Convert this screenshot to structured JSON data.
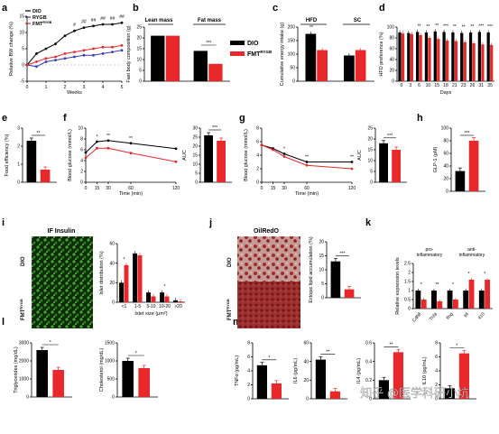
{
  "colors": {
    "dio": "#000000",
    "fmt": "#e8282b",
    "rygb": "#3a3ab8",
    "if_green": "#3fae2b",
    "oil_red": "#a52a2a"
  },
  "panel_labels": [
    "a",
    "b",
    "c",
    "d",
    "e",
    "f",
    "g",
    "h",
    "i",
    "j",
    "k",
    "l",
    "m"
  ],
  "legend_a": [
    "DIO",
    "RYGB",
    "FMT"
  ],
  "legend_a_sup": "RYGB",
  "legend_b": [
    "DIO",
    "FMT"
  ],
  "legend_b_sup": "RYGB",
  "micrographs": {
    "i_title": "IF Insulin",
    "j_title": "OilRedO",
    "row_dio": "DIO",
    "row_fmt": "FMT",
    "row_fmt_sup": "RYGB"
  },
  "k_groups": {
    "pro": "pro-",
    "pro2": "inflammatory",
    "anti": "anti-",
    "anti2": "inflammatory"
  },
  "watermark": "知乎 @医学科研小坑",
  "chart_data": [
    {
      "id": "a",
      "type": "line",
      "title": "",
      "xlabel": "Weeks",
      "ylabel": "Relative BW change (%)",
      "x": [
        0,
        0.5,
        1,
        1.5,
        2,
        2.5,
        3,
        3.5,
        4,
        4.5,
        5
      ],
      "ylim": [
        -5,
        15
      ],
      "xticks": [
        0,
        1,
        2,
        3,
        4,
        5
      ],
      "yticks": [
        -5,
        0,
        5,
        10,
        15
      ],
      "series": [
        {
          "name": "DIO",
          "values": [
            0,
            3.5,
            5,
            6.5,
            9,
            10.5,
            11.5,
            12,
            12.5,
            12.5,
            13
          ]
        },
        {
          "name": "RYGB",
          "values": [
            0,
            -0.5,
            1,
            1.5,
            2,
            2.5,
            3,
            3,
            3.5,
            4,
            4.5
          ]
        },
        {
          "name": "FMT",
          "values": [
            0,
            1,
            2,
            2.5,
            3.5,
            4,
            4.5,
            5,
            5.5,
            5.5,
            6
          ]
        }
      ],
      "annotations": [
        "#",
        "##",
        "##",
        "##",
        "##",
        "##"
      ]
    },
    {
      "id": "b",
      "type": "bar",
      "ylabel": "Fast body composition (g)",
      "groups": [
        "Lean mass",
        "Fat mass"
      ],
      "series": [
        {
          "name": "DIO",
          "values": [
            21,
            14
          ]
        },
        {
          "name": "FMT",
          "values": [
            21,
            8
          ]
        }
      ],
      "sig": "***"
    },
    {
      "id": "c",
      "type": "bar",
      "ylabel": "Cumulative energy intake (g)",
      "groups": [
        "HFD",
        "SC"
      ],
      "yticks": [
        0,
        50,
        100,
        150,
        200
      ],
      "ylim": [
        0,
        200
      ],
      "series": [
        {
          "name": "DIO",
          "values": [
            175,
            95
          ]
        },
        {
          "name": "FMT",
          "values": [
            115,
            115
          ]
        }
      ],
      "sig": "**"
    },
    {
      "id": "d",
      "type": "bar",
      "xlabel": "Days",
      "ylabel": "HFD preference (%)",
      "categories": [
        "0",
        "3",
        "6",
        "10",
        "15",
        "18",
        "21",
        "23",
        "26",
        "31",
        "35"
      ],
      "yticks": [
        0,
        20,
        40,
        60,
        80,
        100
      ],
      "ylim": [
        0,
        100
      ],
      "series": [
        {
          "name": "DIO",
          "values": [
            90,
            89,
            91,
            90,
            92,
            91,
            90,
            89,
            90,
            91,
            90
          ]
        },
        {
          "name": "FMT",
          "values": [
            88,
            87,
            85,
            80,
            78,
            75,
            74,
            72,
            70,
            68,
            67
          ]
        }
      ],
      "sig": [
        "**",
        "**",
        "**",
        "***",
        "**",
        "**",
        "**",
        "***",
        "***"
      ]
    },
    {
      "id": "e",
      "type": "bar",
      "ylabel": "Food efficiency (%)",
      "yticks": [
        0,
        1,
        2,
        3
      ],
      "ylim": [
        0,
        3
      ],
      "values": [
        2.3,
        0.7
      ],
      "sig": "**"
    },
    {
      "id": "f",
      "type": "line",
      "xlabel": "Time (min)",
      "ylabel": "Blood glucose (mmol/L)",
      "x": [
        0,
        15,
        30,
        60,
        120
      ],
      "xticks": [
        0,
        15,
        30,
        60,
        120
      ],
      "yticks": [
        0,
        2,
        4,
        6,
        8,
        10
      ],
      "ylim": [
        0,
        10
      ],
      "series": [
        {
          "name": "DIO",
          "values": [
            5.5,
            7.5,
            7.7,
            7.2,
            6.2
          ]
        },
        {
          "name": "FMT",
          "values": [
            4.5,
            6.3,
            6.3,
            5.4,
            3.8
          ]
        }
      ],
      "sig": [
        "*",
        "**",
        "**"
      ]
    },
    {
      "id": "f_auc",
      "type": "bar",
      "ylabel": "AUC",
      "yticks": [
        0,
        5,
        10,
        15,
        20,
        25,
        30
      ],
      "ylim": [
        0,
        30
      ],
      "values": [
        26,
        23
      ],
      "sig": "***"
    },
    {
      "id": "g",
      "type": "line",
      "xlabel": "Time (min)",
      "ylabel": "Blood glucose (mmol/L)",
      "x": [
        0,
        15,
        30,
        60,
        120
      ],
      "xticks": [
        0,
        15,
        30,
        60,
        120
      ],
      "yticks": [
        0,
        2,
        4,
        6,
        8
      ],
      "ylim": [
        0,
        8
      ],
      "series": [
        {
          "name": "DIO",
          "values": [
            5.5,
            5,
            4.2,
            3,
            3
          ]
        },
        {
          "name": "FMT",
          "values": [
            5.5,
            4.8,
            3.8,
            2.5,
            2
          ]
        }
      ],
      "sig": [
        "*",
        "**",
        "**"
      ]
    },
    {
      "id": "g_auc",
      "type": "bar",
      "ylabel": "AUC",
      "yticks": [
        0,
        5,
        10,
        15,
        20,
        25
      ],
      "ylim": [
        0,
        25
      ],
      "values": [
        18,
        15
      ],
      "sig": "***"
    },
    {
      "id": "h",
      "type": "bar",
      "ylabel": "GLP-1 (pM)",
      "yticks": [
        0,
        20,
        40,
        60,
        80,
        100
      ],
      "ylim": [
        0,
        100
      ],
      "values": [
        32,
        80
      ],
      "sig": "***"
    },
    {
      "id": "i",
      "type": "bar",
      "xlabel": "Islet size (μm²)",
      "ylabel": "Islet distribution (%)",
      "categories": [
        "<1",
        "1-5",
        "5-10",
        "10-20",
        ">20"
      ],
      "yticks": [
        0,
        20,
        40,
        60
      ],
      "ylim": [
        0,
        60
      ],
      "series": [
        {
          "name": "DIO",
          "values": [
            20,
            50,
            10,
            10,
            2
          ]
        },
        {
          "name": "FMT",
          "values": [
            38,
            48,
            6,
            6,
            1
          ]
        }
      ],
      "sig": [
        "*",
        "*"
      ]
    },
    {
      "id": "j",
      "type": "bar",
      "ylabel": "Ectopic lipid accumulation (%)",
      "yticks": [
        0,
        5,
        10,
        15,
        20
      ],
      "ylim": [
        0,
        20
      ],
      "values": [
        13,
        3
      ],
      "sig": "***"
    },
    {
      "id": "k",
      "type": "bar",
      "ylabel": "Relative expression levels",
      "categories": [
        "Cd68",
        "Tnfa",
        "Ifng",
        "Il4",
        "Il10"
      ],
      "yticks": [
        0,
        0.5,
        1.0,
        1.5,
        2.0,
        2.5
      ],
      "ylim": [
        0,
        2.5
      ],
      "series": [
        {
          "name": "DIO",
          "values": [
            1,
            1,
            1,
            1,
            1
          ]
        },
        {
          "name": "FMT",
          "values": [
            0.5,
            0.4,
            0.5,
            1.6,
            1.6
          ]
        }
      ],
      "sig": [
        "*",
        "**",
        "*",
        "*",
        "*"
      ]
    },
    {
      "id": "l1",
      "type": "bar",
      "ylabel": "Triglycerides (mg/dL)",
      "yticks": [
        0,
        1000,
        2000,
        3000
      ],
      "ylim": [
        0,
        3000
      ],
      "values": [
        2600,
        1500
      ],
      "sig": "*"
    },
    {
      "id": "l2",
      "type": "bar",
      "ylabel": "Cholesterol (mg/dL)",
      "yticks": [
        0,
        500,
        1000,
        1500
      ],
      "ylim": [
        0,
        1500
      ],
      "values": [
        1000,
        800
      ],
      "sig": "*"
    },
    {
      "id": "m1",
      "type": "bar",
      "ylabel": "TNFα (pg/mL)",
      "yticks": [
        0,
        2,
        4,
        6,
        8
      ],
      "ylim": [
        0,
        8
      ],
      "values": [
        4.8,
        2.2
      ],
      "sig": "*"
    },
    {
      "id": "m2",
      "type": "bar",
      "ylabel": "IL6 (pg/mL)",
      "yticks": [
        0,
        20,
        40,
        60
      ],
      "ylim": [
        0,
        60
      ],
      "values": [
        42,
        8
      ],
      "sig": "**"
    },
    {
      "id": "m3",
      "type": "bar",
      "ylabel": "IL4 (pg/mL)",
      "yticks": [
        0,
        0.2,
        0.4,
        0.6
      ],
      "ylim": [
        0,
        0.6
      ],
      "values": [
        0.2,
        0.5
      ],
      "sig": "**"
    },
    {
      "id": "m4",
      "type": "bar",
      "ylabel": "IL10 (pg/mL)",
      "yticks": [
        0,
        2,
        4,
        6,
        8
      ],
      "ylim": [
        0,
        8
      ],
      "values": [
        1.5,
        6.5
      ],
      "sig": "*"
    }
  ]
}
